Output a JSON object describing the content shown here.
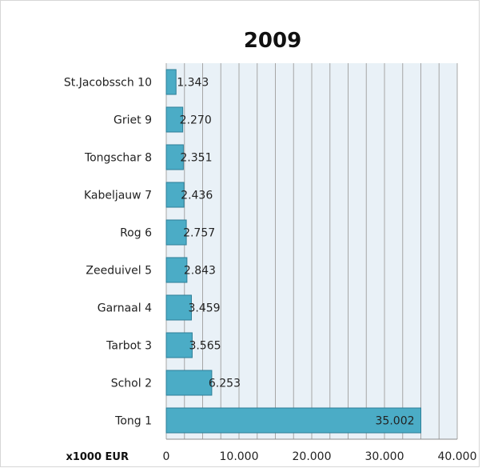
{
  "chart_data": {
    "type": "bar",
    "orientation": "horizontal",
    "title": "2009",
    "unit_label": "x1000 EUR",
    "categories": [
      "St.Jacobssch 10",
      "Griet 9",
      "Tongschar 8",
      "Kabeljauw 7",
      "Rog 6",
      "Zeeduivel 5",
      "Garnaal 4",
      "Tarbot 3",
      "Schol 2",
      "Tong 1"
    ],
    "values": [
      1343,
      2270,
      2351,
      2436,
      2757,
      2843,
      3459,
      3565,
      6253,
      35002
    ],
    "data_labels": [
      "1.343",
      "2.270",
      "2.351",
      "2.436",
      "2.757",
      "2.843",
      "3.459",
      "3.565",
      "6.253",
      "35.002"
    ],
    "xlim": [
      0,
      40000
    ],
    "xticks": [
      0,
      10000,
      20000,
      30000,
      40000
    ],
    "xtick_labels": [
      "0",
      "10.000",
      "20.000",
      "30.000",
      "40.000"
    ],
    "grid": true,
    "bar_color": "#4bacc6",
    "bar_edge_color": "#2e7f98",
    "plot_bg": "#e9f1f7",
    "grid_color": "#a6a6a6"
  }
}
